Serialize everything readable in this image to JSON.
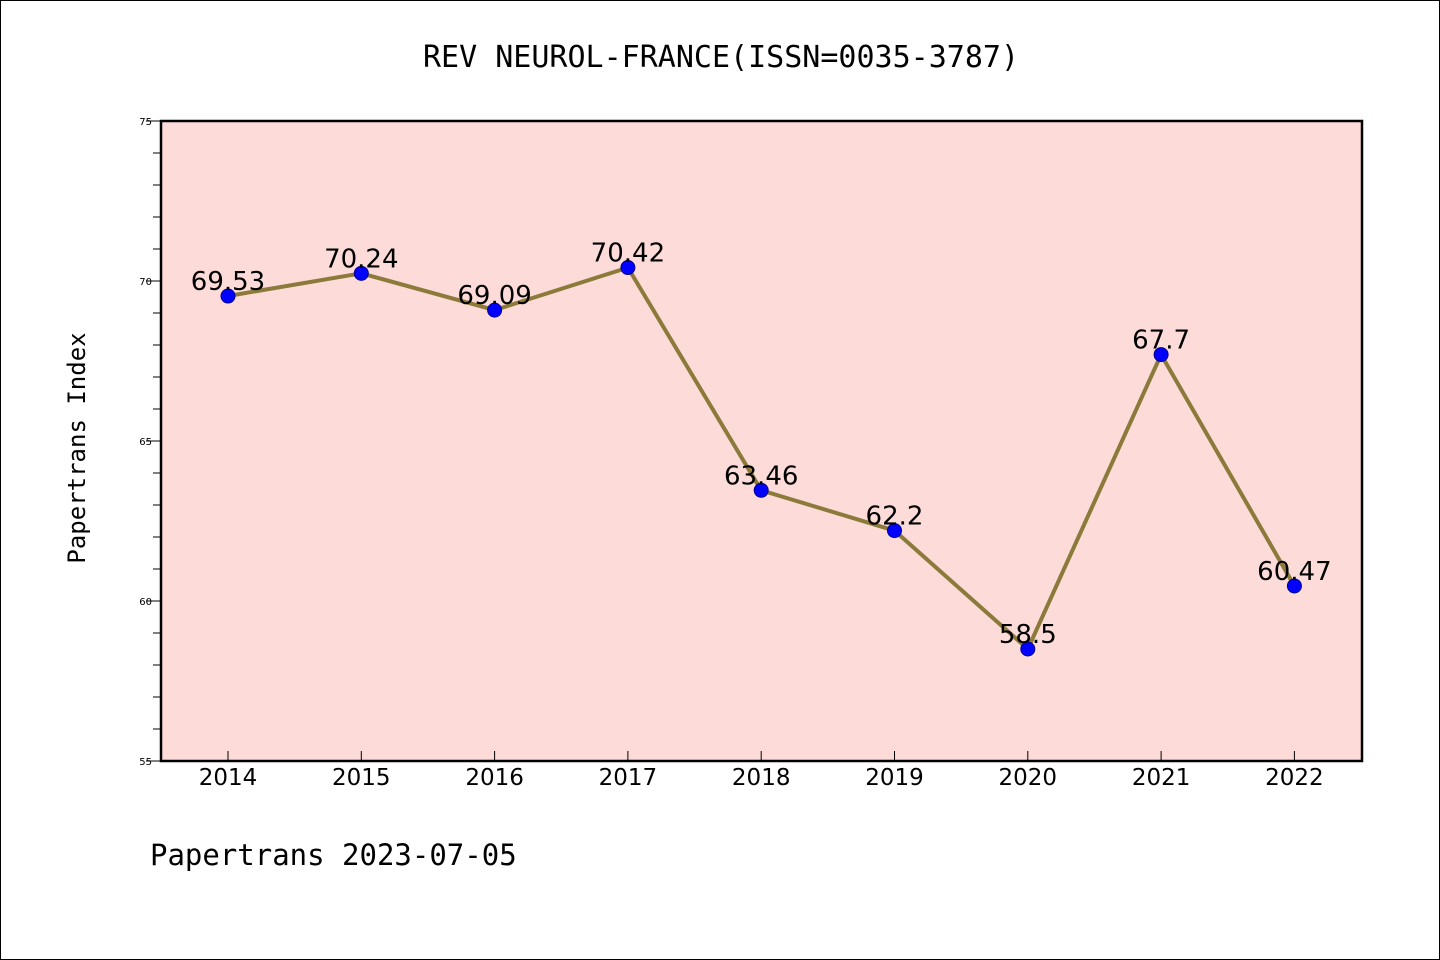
{
  "chart_data": {
    "type": "line",
    "title": "REV NEUROL-FRANCE(ISSN=0035-3787)",
    "xlabel": "",
    "ylabel": "Papertrans Index",
    "categories": [
      "2014",
      "2015",
      "2016",
      "2017",
      "2018",
      "2019",
      "2020",
      "2021",
      "2022"
    ],
    "series": [
      {
        "values": [
          69.53,
          70.24,
          69.09,
          70.42,
          63.46,
          62.2,
          58.5,
          67.7,
          60.47
        ],
        "data_labels": [
          "69.53",
          "70.24",
          "69.09",
          "70.42",
          "63.46",
          "62.2",
          "58.5",
          "67.7",
          "60.47"
        ]
      }
    ],
    "ylim": [
      55,
      75
    ],
    "yticks": [
      "55",
      "60",
      "65",
      "70",
      "75"
    ],
    "grid": false,
    "legend": "none",
    "colors": {
      "plot_background": "#fddbd8",
      "line": "#8b7a3a",
      "marker": "#0000ff"
    }
  },
  "footer": {
    "text": "Papertrans 2023-07-05"
  }
}
